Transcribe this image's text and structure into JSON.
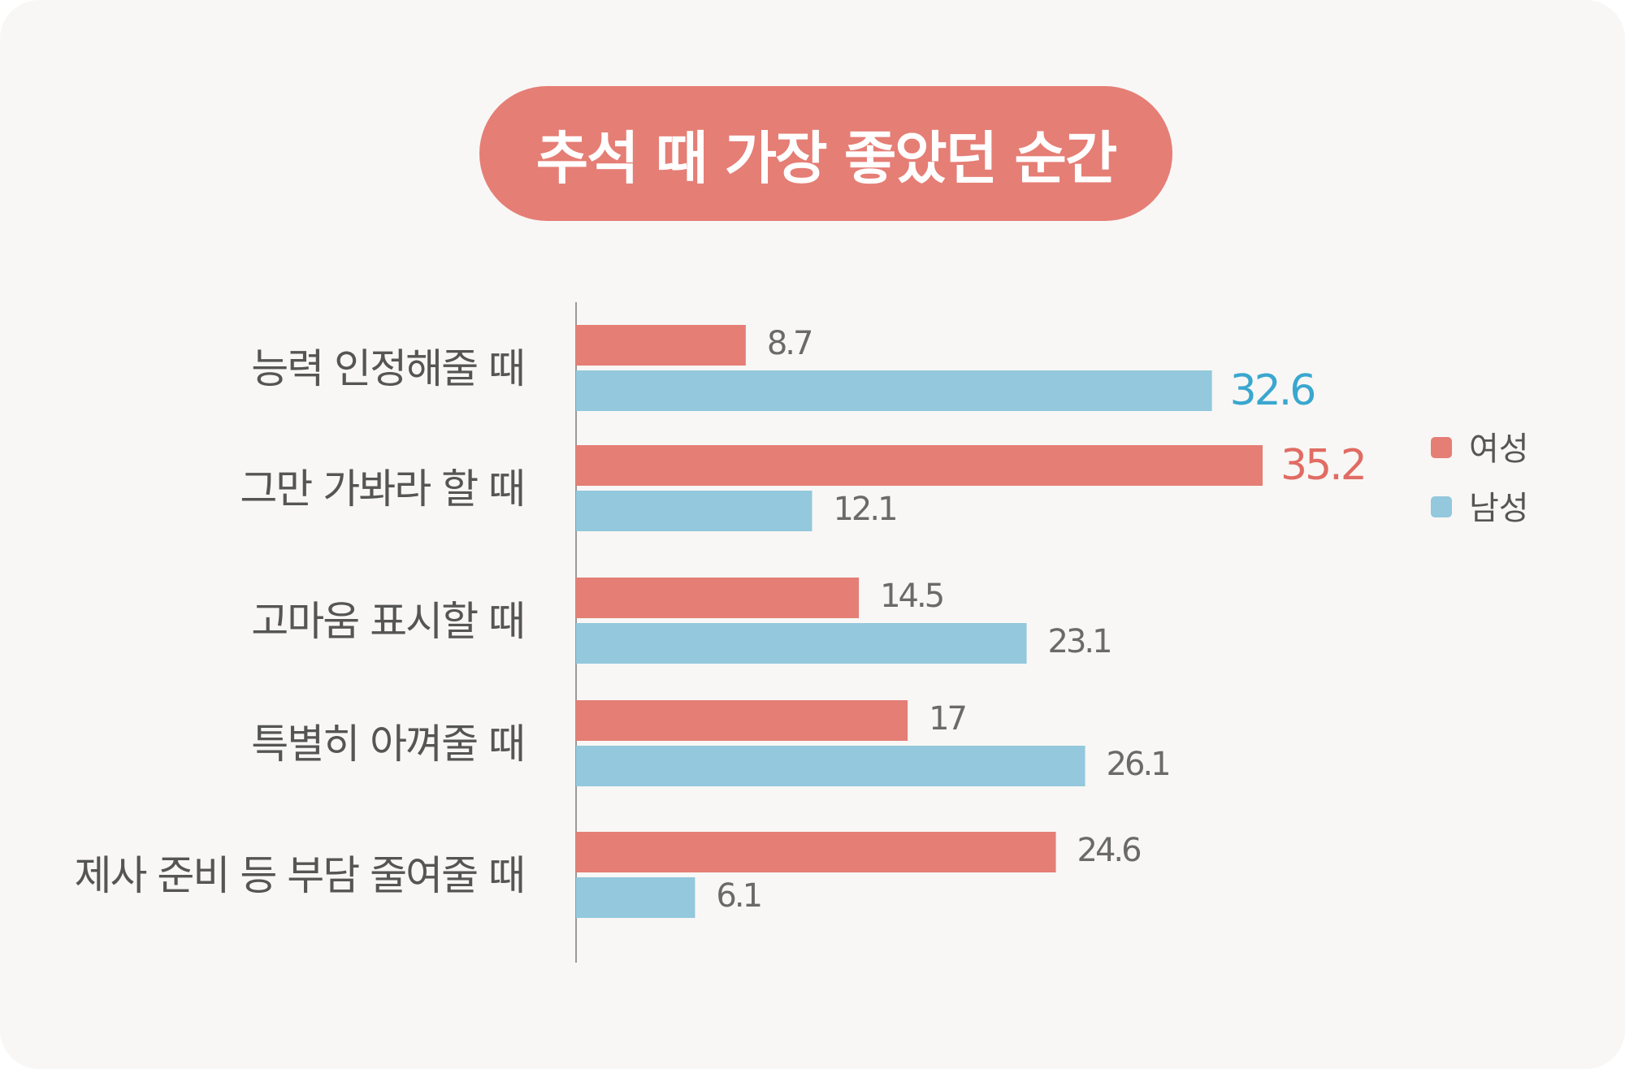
{
  "colors": {
    "female": "#e57e75",
    "male": "#93c8dd",
    "highlight_female_text": "#e06c64",
    "highlight_male_text": "#3aa7cf",
    "background": "#f8f7f5",
    "title_bg": "#e57e75"
  },
  "chart_data": {
    "type": "bar",
    "orientation": "horizontal",
    "title": "추석 때 가장 좋았던 순간",
    "categories": [
      "능력 인정해줄 때",
      "그만 가봐라 할 때",
      "고마움 표시할 때",
      "특별히 아껴줄 때",
      "제사 준비 등 부담 줄여줄 때"
    ],
    "series": [
      {
        "name": "여성",
        "values": [
          8.7,
          35.2,
          14.5,
          17,
          24.6
        ],
        "highlight_index": 1
      },
      {
        "name": "남성",
        "values": [
          32.6,
          12.1,
          23.1,
          26.1,
          6.1
        ],
        "highlight_index": 0
      }
    ],
    "xlim": [
      0,
      35.2
    ],
    "grid": false,
    "legend_position": "right"
  }
}
